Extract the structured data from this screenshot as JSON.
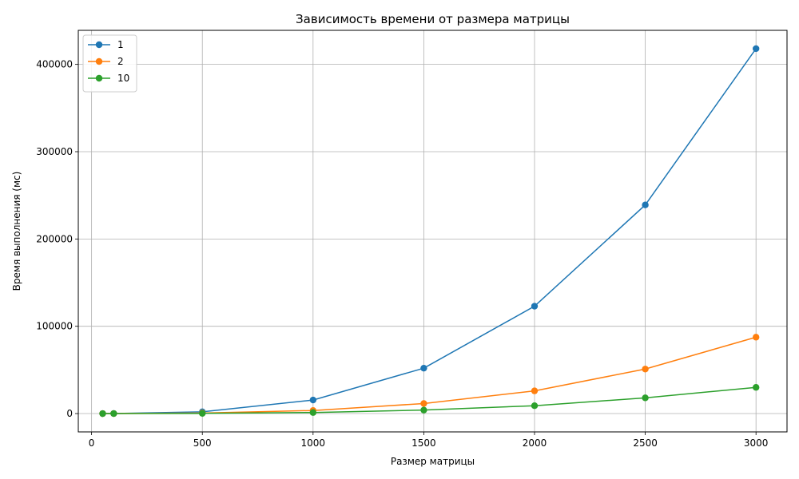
{
  "chart_data": {
    "type": "line",
    "title": "Зависимость времени от размера матрицы",
    "xlabel": "Размер матрицы",
    "ylabel": "Время выполнения (мс)",
    "xlim": [
      -60,
      3140
    ],
    "ylim": [
      -21000,
      439000
    ],
    "x_ticks": [
      0,
      500,
      1000,
      1500,
      2000,
      2500,
      3000
    ],
    "y_ticks": [
      0,
      100000,
      200000,
      300000,
      400000
    ],
    "grid": true,
    "legend_position": "top-left",
    "x": [
      50,
      100,
      500,
      1000,
      1500,
      2000,
      2500,
      3000
    ],
    "series": [
      {
        "name": "1",
        "color": "#1f77b4",
        "values": [
          10,
          50,
          2000,
          15500,
          52000,
          123000,
          239000,
          418000
        ]
      },
      {
        "name": "2",
        "color": "#ff7f0e",
        "values": [
          5,
          20,
          600,
          3500,
          11500,
          26000,
          51000,
          87500
        ]
      },
      {
        "name": "10",
        "color": "#2ca02c",
        "values": [
          3,
          10,
          200,
          1200,
          4000,
          9000,
          18000,
          30000
        ]
      }
    ]
  }
}
